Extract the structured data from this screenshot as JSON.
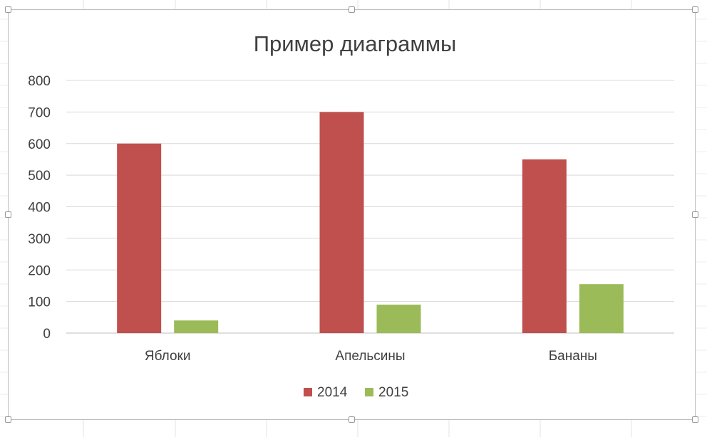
{
  "chart_data": {
    "type": "bar",
    "title": "Пример диаграммы",
    "categories": [
      "Яблоки",
      "Апельсины",
      "Бананы"
    ],
    "series": [
      {
        "name": "2014",
        "values": [
          600,
          700,
          550
        ],
        "color": "#c0504d"
      },
      {
        "name": "2015",
        "values": [
          40,
          90,
          155
        ],
        "color": "#9bbb59"
      }
    ],
    "ylim": [
      0,
      800
    ],
    "yticks": [
      0,
      100,
      200,
      300,
      400,
      500,
      600,
      700,
      800
    ],
    "grid": true,
    "legend_position": "bottom",
    "colors": {
      "gridline": "#d9d9d9",
      "axis_text": "#404040",
      "title_text": "#404040"
    }
  }
}
